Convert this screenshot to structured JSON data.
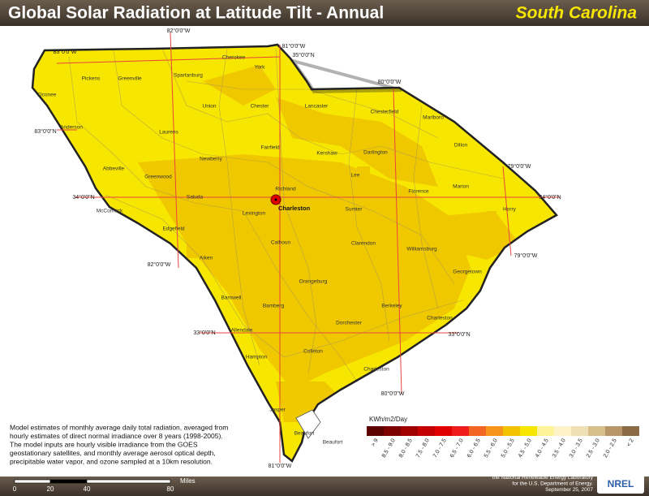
{
  "header": {
    "title": "Global Solar Radiation at Latitude Tilt - Annual",
    "state": "South Carolina"
  },
  "graticule": [
    "82°0'0\"W",
    "81°0'0\"W",
    "35°0'0\"N",
    "83°0'0\"W",
    "80°0'0\"W",
    "83°0'0\"N",
    "79°0'0\"W",
    "34°0'0\"N",
    "34°0'0\"N",
    "82°0'0\"W",
    "79°0'0\"W",
    "33°0'0\"N",
    "33°0'0\"N",
    "80°0'0\"W",
    "81°0'0\"W"
  ],
  "counties": [
    "Oconee",
    "Pickens",
    "Greenville",
    "Spartanburg",
    "Cherokee",
    "York",
    "Anderson",
    "Laurens",
    "Union",
    "Chester",
    "Lancaster",
    "Chesterfield",
    "Marlboro",
    "Dillon",
    "Abbeville",
    "Newberry",
    "Fairfield",
    "Kershaw",
    "Darlington",
    "Greenwood",
    "Lee",
    "Marion",
    "Saluda",
    "Richland",
    "McCormick",
    "Florence",
    "Horry",
    "Lexington",
    "Sumter",
    "Edgefield",
    "Calhoun",
    "Clarendon",
    "Aiken",
    "Williamsburg",
    "Georgetown",
    "Orangeburg",
    "Barnwell",
    "Bamberg",
    "Berkeley",
    "Allendale",
    "Dorchester",
    "Charleston",
    "Colleton",
    "Hampton",
    "Charleston",
    "Jasper",
    "Beaufort",
    "Beaufort"
  ],
  "city": "Charleston",
  "legend": {
    "title": "KWh/m2/Day",
    "classes": [
      {
        "label": "> 9",
        "color": "#5c0000"
      },
      {
        "label": "8.5 - 9.0",
        "color": "#7d0000"
      },
      {
        "label": "8.0 - 8.5",
        "color": "#a00000"
      },
      {
        "label": "7.5 - 8.0",
        "color": "#c40000"
      },
      {
        "label": "7.0 - 7.5",
        "color": "#e00000"
      },
      {
        "label": "6.5 - 7.0",
        "color": "#ee1c1c"
      },
      {
        "label": "6.0 - 6.5",
        "color": "#f26522"
      },
      {
        "label": "5.5 - 6.0",
        "color": "#f7941d"
      },
      {
        "label": "5.0 - 5.5",
        "color": "#f2c200"
      },
      {
        "label": "4.5 - 5.0",
        "color": "#f7e600"
      },
      {
        "label": "4.0 - 4.5",
        "color": "#fff39a"
      },
      {
        "label": "3.5 - 4.0",
        "color": "#fdf2c8"
      },
      {
        "label": "3.0 - 3.5",
        "color": "#efe0b5"
      },
      {
        "label": "2.5 - 3.0",
        "color": "#d8bf8a"
      },
      {
        "label": "2.0 - 2.5",
        "color": "#b89668"
      },
      {
        "label": "< 2",
        "color": "#8a6b45"
      }
    ]
  },
  "description": [
    "Model estimates of monthly average daily total radiation, averaged from",
    "hourly estimates of direct normal irradiance over 8 years (1998-2005).",
    "The model inputs are hourly visible irradiance from the GOES",
    " geostationary satellites, and monthly average aerosol optical depth,",
    "precipitable water vapor, and ozone sampled at a 10km resolution."
  ],
  "scale": {
    "unit": "Miles",
    "labels": [
      "0",
      "20",
      "40",
      "80"
    ]
  },
  "credits": [
    "This map was produced by",
    "the National Renewable Energy Laboratory",
    "for the U.S. Department of Energy.",
    "September 25, 2007"
  ],
  "logo": "NREL"
}
